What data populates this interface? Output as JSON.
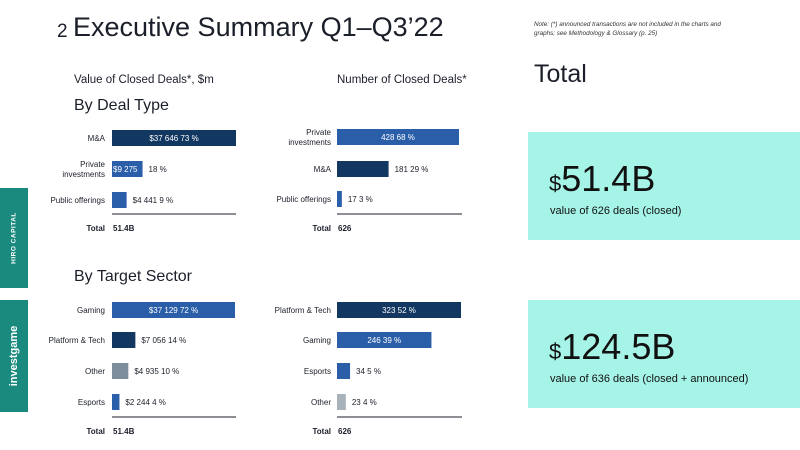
{
  "header": {
    "page_number": "2",
    "title": "Executive Summary Q1–Q3’22",
    "note": "Note: (*) announced transactions are not included in the charts and graphs; see Methodology & Glossary (p. 25)"
  },
  "columns": {
    "value_title": "Value of Closed Deals*, $m",
    "count_title": "Number of Closed Deals*"
  },
  "sections": {
    "deal_type": "By Deal Type",
    "target_sector": "By Target Sector"
  },
  "total_panel": {
    "title": "Total",
    "kpis": [
      {
        "currency": "$",
        "amount": "51.4B",
        "caption": "value of 626 deals (closed)"
      },
      {
        "currency": "$",
        "amount": "124.5B",
        "caption": "value of 636 deals (closed + announced)"
      }
    ]
  },
  "side_brands": [
    "HIRO CAPITAL",
    "investgame"
  ],
  "colors": {
    "dark_navy": "#123761",
    "blue": "#2a5ea8",
    "grey": "#7f8e9c",
    "light_grey": "#a9b1ba",
    "kpi_bg": "#a6f4e8",
    "brand_teal": "#1a8a7e"
  },
  "chart_data": [
    {
      "type": "bar",
      "orientation": "horizontal",
      "title": "Value of Closed Deals*, $m — By Deal Type",
      "categories": [
        "M&A",
        "Private investments",
        "Public offerings"
      ],
      "values": [
        37646,
        9275,
        4441
      ],
      "value_labels": [
        "$37 646",
        "$9 275",
        "$4 441"
      ],
      "percent_labels": [
        "73 %",
        "18 %",
        "9 %"
      ],
      "bar_colors": [
        "dark_navy",
        "blue",
        "blue"
      ],
      "total_label": "Total",
      "total_value": "51.4B",
      "xlim": [
        0,
        37646
      ]
    },
    {
      "type": "bar",
      "orientation": "horizontal",
      "title": "Number of Closed Deals* — By Deal Type",
      "categories": [
        "Private investments",
        "M&A",
        "Public offerings"
      ],
      "values": [
        428,
        181,
        17
      ],
      "value_labels": [
        "428",
        "181",
        "17"
      ],
      "percent_labels": [
        "68 %",
        "29 %",
        "3 %"
      ],
      "bar_colors": [
        "blue",
        "dark_navy",
        "blue"
      ],
      "total_label": "Total",
      "total_value": "626",
      "xlim": [
        0,
        428
      ]
    },
    {
      "type": "bar",
      "orientation": "horizontal",
      "title": "Value of Closed Deals*, $m — By Target Sector",
      "categories": [
        "Gaming",
        "Platform & Tech",
        "Other",
        "Esports"
      ],
      "values": [
        37129,
        7056,
        4935,
        2244
      ],
      "value_labels": [
        "$37 129",
        "$7 056",
        "$4 935",
        "$2 244"
      ],
      "percent_labels": [
        "72 %",
        "14 %",
        "10 %",
        "4 %"
      ],
      "bar_colors": [
        "blue",
        "dark_navy",
        "grey",
        "blue"
      ],
      "total_label": "Total",
      "total_value": "51.4B",
      "xlim": [
        0,
        37129
      ]
    },
    {
      "type": "bar",
      "orientation": "horizontal",
      "title": "Number of Closed Deals* — By Target Sector",
      "categories": [
        "Platform & Tech",
        "Gaming",
        "Esports",
        "Other"
      ],
      "values": [
        323,
        246,
        34,
        23
      ],
      "value_labels": [
        "323",
        "246",
        "34",
        "23"
      ],
      "percent_labels": [
        "52 %",
        "39 %",
        "5 %",
        "4 %"
      ],
      "bar_colors": [
        "dark_navy",
        "blue",
        "blue",
        "light_grey"
      ],
      "total_label": "Total",
      "total_value": "626",
      "xlim": [
        0,
        323
      ]
    }
  ]
}
